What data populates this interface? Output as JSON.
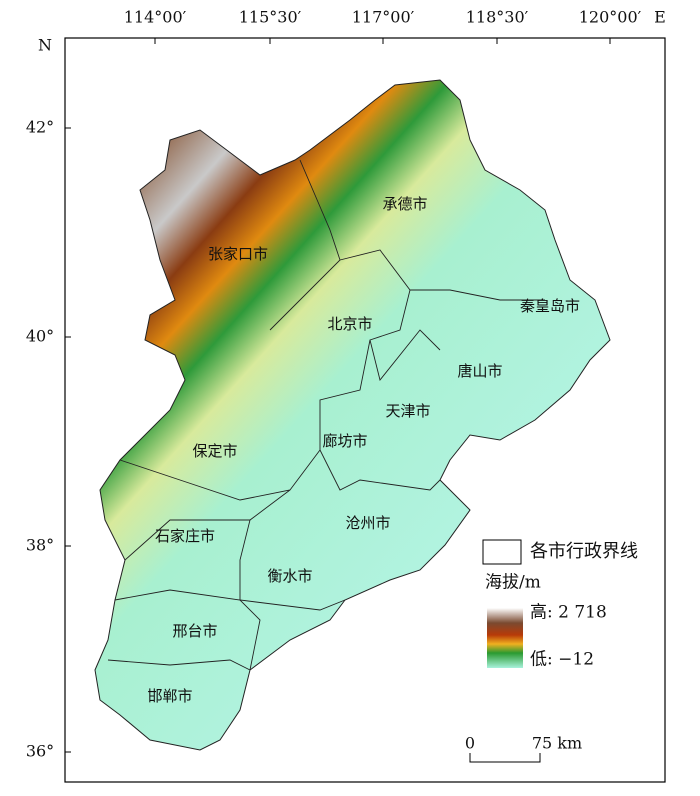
{
  "axes": {
    "top_labels": [
      "114°00′",
      "115°30′",
      "117°00′",
      "118°30′",
      "120°00′"
    ],
    "top_suffix": "E",
    "left_labels": [
      "42°",
      "40°",
      "38°",
      "36°"
    ],
    "left_prefix": "N"
  },
  "cities": [
    "承德市",
    "张家口市",
    "北京市",
    "秦皇岛市",
    "唐山市",
    "天津市",
    "廊坊市",
    "保定市",
    "沧州市",
    "石家庄市",
    "衡水市",
    "邢台市",
    "邯郸市"
  ],
  "legend": {
    "boundary": "各市行政界线",
    "elevation_title": "海拔/m",
    "high": "高: 2 718",
    "low": "低: −12"
  },
  "scale_bar": {
    "zero": "0",
    "distance": "75 km"
  }
}
